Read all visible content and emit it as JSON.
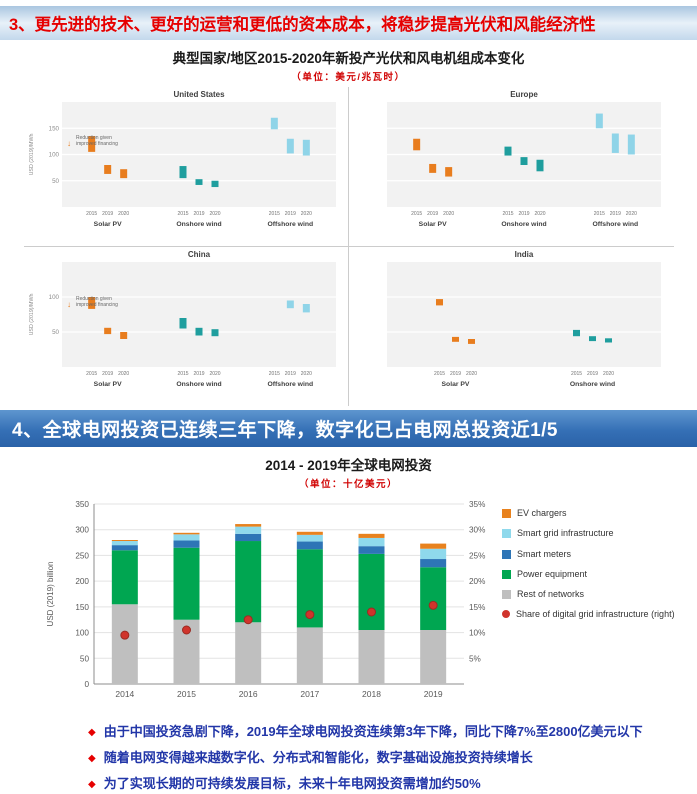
{
  "colors": {
    "header_red": "#e60000",
    "unit_red": "#d00000",
    "bullet_blue": "#2236a8",
    "solar_orange": "#E87D1E",
    "onshore_teal": "#1F9E9E",
    "offshore_lightblue": "#8FD4E8"
  },
  "section3": {
    "header": "3、更先进的技术、更好的运营和更低的资本成本，将稳步提高光伏和风能经济性"
  },
  "section4": {
    "header": "4、全球电网投资已连续三年下降，数字化已占电网总投资近1/5",
    "bullets": [
      "由于中国投资急剧下降，2019年全球电网投资连续第3年下降，同比下降7%至2800亿美元以下",
      "随着电网变得越来越数字化、分布式和智能化，数字基础设施投资持续增长",
      "为了实现长期的可持续发展目标，未来十年电网投资需增加约50%"
    ]
  },
  "chart_data": [
    {
      "type": "floating-bar-panels",
      "title": "典型国家/地区2015-2020年新投产光伏和风电机组成本变化",
      "unit": "（单位：美元/兆瓦时）",
      "ylabel": "USD (2019)/MWh",
      "panels": [
        {
          "name": "United States",
          "ymax": 200,
          "yticks": [
            50,
            100,
            150
          ],
          "show_yticks": true,
          "annotation": "Reduction given\nimproved financing",
          "ann_y": 130,
          "groups": [
            {
              "label": "Solar PV",
              "color": "#E87D1E",
              "bars": [
                {
                  "year": "2015",
                  "lo": 105,
                  "hi": 135
                },
                {
                  "year": "2019",
                  "lo": 63,
                  "hi": 80
                },
                {
                  "year": "2020",
                  "lo": 55,
                  "hi": 72
                }
              ]
            },
            {
              "label": "Onshore wind",
              "color": "#1F9E9E",
              "bars": [
                {
                  "year": "2015",
                  "lo": 55,
                  "hi": 78
                },
                {
                  "year": "2019",
                  "lo": 42,
                  "hi": 53
                },
                {
                  "year": "2020",
                  "lo": 38,
                  "hi": 50
                }
              ]
            },
            {
              "label": "Offshore wind",
              "color": "#8FD4E8",
              "bars": [
                {
                  "year": "2015",
                  "lo": 148,
                  "hi": 170
                },
                {
                  "year": "2019",
                  "lo": 102,
                  "hi": 130
                },
                {
                  "year": "2020",
                  "lo": 98,
                  "hi": 128
                }
              ]
            }
          ]
        },
        {
          "name": "Europe",
          "ymax": 200,
          "yticks": [
            50,
            100,
            150
          ],
          "show_yticks": false,
          "annotation": null,
          "groups": [
            {
              "label": "Solar PV",
              "color": "#E87D1E",
              "bars": [
                {
                  "year": "2015",
                  "lo": 108,
                  "hi": 130
                },
                {
                  "year": "2019",
                  "lo": 65,
                  "hi": 82
                },
                {
                  "year": "2020",
                  "lo": 58,
                  "hi": 76
                }
              ]
            },
            {
              "label": "Onshore wind",
              "color": "#1F9E9E",
              "bars": [
                {
                  "year": "2015",
                  "lo": 98,
                  "hi": 115
                },
                {
                  "year": "2019",
                  "lo": 80,
                  "hi": 95
                },
                {
                  "year": "2020",
                  "lo": 68,
                  "hi": 90
                }
              ]
            },
            {
              "label": "Offshore wind",
              "color": "#8FD4E8",
              "bars": [
                {
                  "year": "2015",
                  "lo": 150,
                  "hi": 178
                },
                {
                  "year": "2019",
                  "lo": 103,
                  "hi": 140
                },
                {
                  "year": "2020",
                  "lo": 100,
                  "hi": 138
                }
              ]
            }
          ]
        },
        {
          "name": "China",
          "ymax": 150,
          "yticks": [
            50,
            100
          ],
          "show_yticks": true,
          "annotation": "Reduction given\nimproved financing",
          "ann_y": 96,
          "groups": [
            {
              "label": "Solar PV",
              "color": "#E87D1E",
              "bars": [
                {
                  "year": "2015",
                  "lo": 83,
                  "hi": 100
                },
                {
                  "year": "2019",
                  "lo": 47,
                  "hi": 56
                },
                {
                  "year": "2020",
                  "lo": 40,
                  "hi": 50
                }
              ]
            },
            {
              "label": "Onshore wind",
              "color": "#1F9E9E",
              "bars": [
                {
                  "year": "2015",
                  "lo": 55,
                  "hi": 70
                },
                {
                  "year": "2019",
                  "lo": 45,
                  "hi": 56
                },
                {
                  "year": "2020",
                  "lo": 44,
                  "hi": 54
                }
              ]
            },
            {
              "label": "Offshore wind",
              "color": "#8FD4E8",
              "bars": [
                {
                  "year": "2015",
                  "lo": null,
                  "hi": null
                },
                {
                  "year": "2019",
                  "lo": 84,
                  "hi": 95
                },
                {
                  "year": "2020",
                  "lo": 78,
                  "hi": 90
                }
              ]
            }
          ]
        },
        {
          "name": "India",
          "ymax": 150,
          "yticks": [
            50,
            100
          ],
          "show_yticks": false,
          "annotation": null,
          "groups": [
            {
              "label": "Solar PV",
              "color": "#E87D1E",
              "bars": [
                {
                  "year": "2015",
                  "lo": 88,
                  "hi": 97
                },
                {
                  "year": "2019",
                  "lo": 36,
                  "hi": 43
                },
                {
                  "year": "2020",
                  "lo": 33,
                  "hi": 40
                }
              ]
            },
            {
              "label": "Onshore wind",
              "color": "#1F9E9E",
              "bars": [
                {
                  "year": "2015",
                  "lo": 44,
                  "hi": 53
                },
                {
                  "year": "2019",
                  "lo": 37,
                  "hi": 44
                },
                {
                  "year": "2020",
                  "lo": 35,
                  "hi": 41
                }
              ]
            }
          ]
        }
      ]
    },
    {
      "type": "stacked-bar-line",
      "title": "2014 - 2019年全球电网投资",
      "unit": "（单位：十亿美元）",
      "ylabel": "USD (2019) billion",
      "categories": [
        "2014",
        "2015",
        "2016",
        "2017",
        "2018",
        "2019"
      ],
      "series": [
        {
          "name": "Rest of networks",
          "color": "#BFBFBF",
          "values": [
            155,
            125,
            120,
            110,
            105,
            105
          ]
        },
        {
          "name": "Power equipment",
          "color": "#00A651",
          "values": [
            105,
            140,
            158,
            152,
            148,
            122
          ]
        },
        {
          "name": "Smart meters",
          "color": "#2E75B6",
          "values": [
            10,
            14,
            14,
            15,
            15,
            16
          ]
        },
        {
          "name": "Smart grid infrastructure",
          "color": "#8FD9EC",
          "values": [
            8,
            12,
            14,
            13,
            16,
            20
          ]
        },
        {
          "name": "EV chargers",
          "color": "#E8821E",
          "values": [
            2,
            3,
            5,
            6,
            8,
            10
          ]
        }
      ],
      "dot_series": {
        "name": "Share of digital grid infrastructure (right)",
        "color": "#D0342C",
        "values": [
          9.5,
          10.5,
          12.5,
          13.5,
          14,
          15.3
        ]
      },
      "ylim": [
        0,
        350
      ],
      "yticks": [
        0,
        50,
        100,
        150,
        200,
        250,
        300,
        350
      ],
      "y2ticks": [
        "5%",
        "10%",
        "15%",
        "20%",
        "25%",
        "30%",
        "35%"
      ],
      "legend_position": "right",
      "grid": true
    }
  ]
}
